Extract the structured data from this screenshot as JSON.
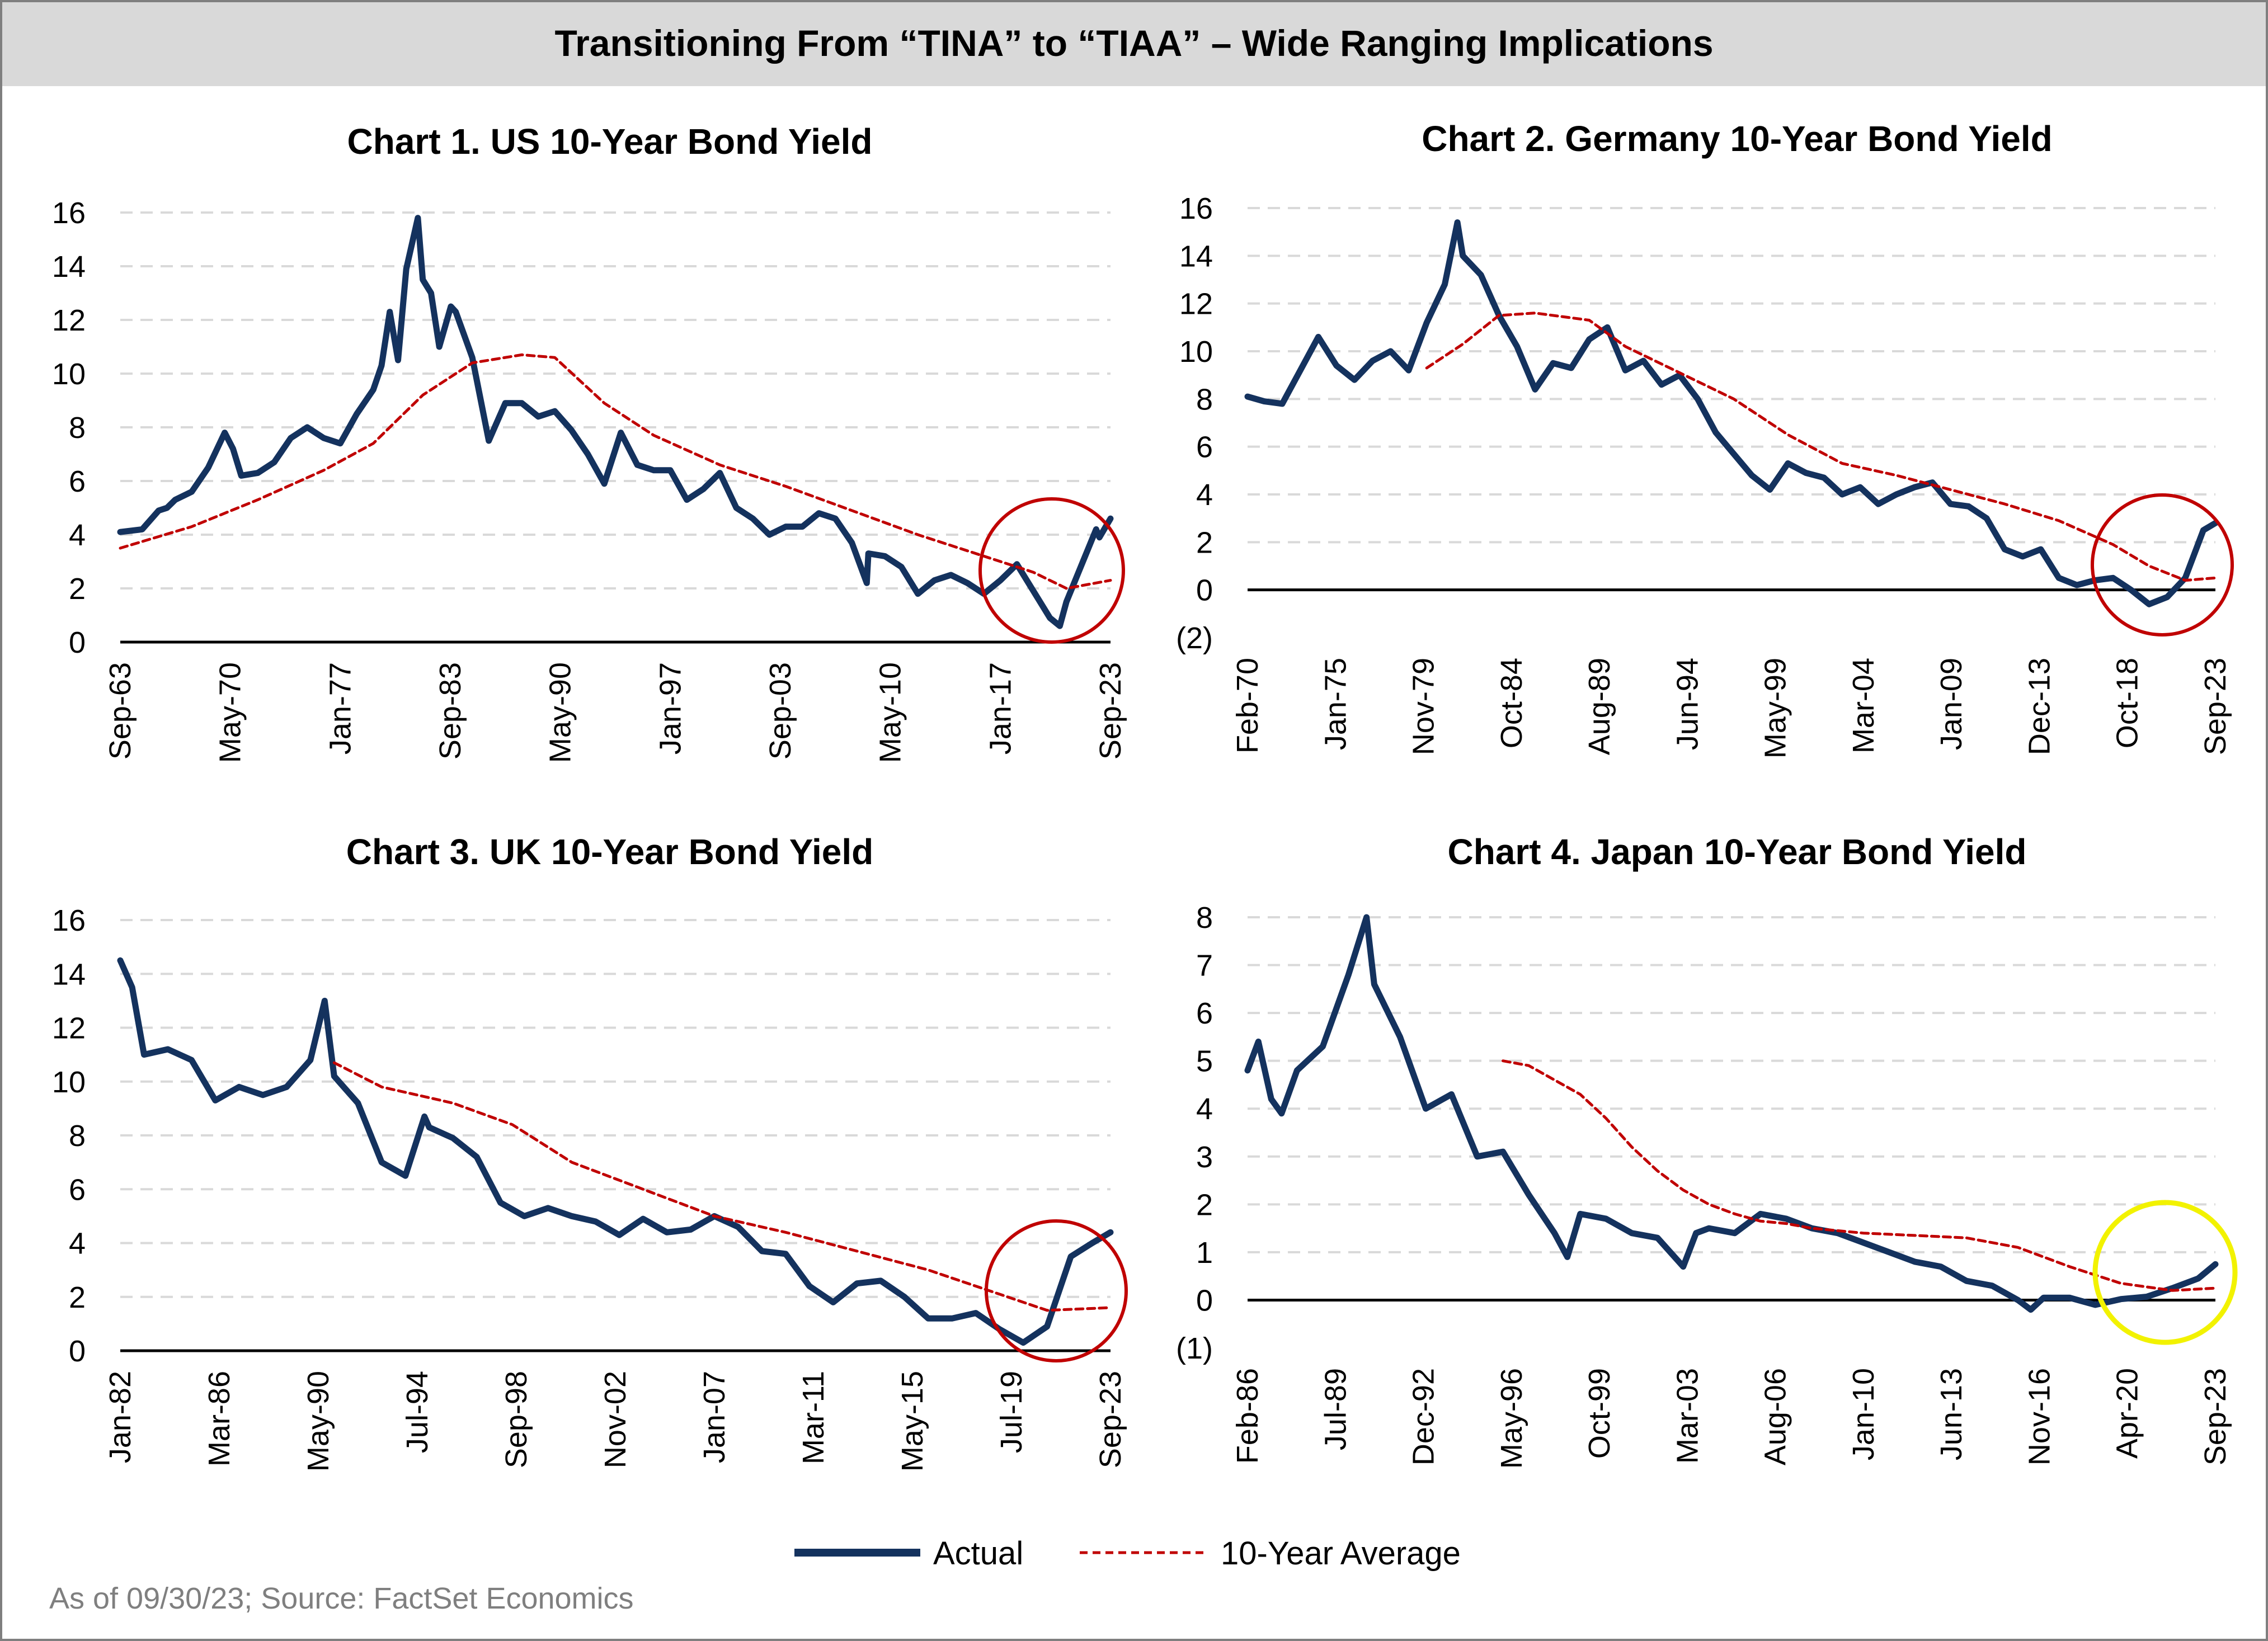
{
  "header": {
    "title": "Transitioning From “TINA” to “TIAA” – Wide Ranging Implications"
  },
  "legend": {
    "actual_label": "Actual",
    "average_label": "10-Year Average"
  },
  "footer": {
    "source": "As of 09/30/23; Source: FactSet Economics"
  },
  "colors": {
    "actual": "#14325e",
    "average": "#c00000",
    "circle_red": "#c00000",
    "circle_yellow": "#f2f200",
    "grid": "#d9d9d9",
    "header_bg": "#d9d9d9"
  },
  "chart_data": [
    {
      "type": "line",
      "title": "Chart 1. US 10-Year Bond Yield",
      "xlabel": "",
      "ylabel": "",
      "x_ticks": [
        "Sep-63",
        "May-70",
        "Jan-77",
        "Sep-83",
        "May-90",
        "Jan-97",
        "Sep-03",
        "May-10",
        "Jan-17",
        "Sep-23"
      ],
      "x_range": [
        1963.67,
        2023.67
      ],
      "ylim": [
        0,
        16
      ],
      "y_ticks": [
        0,
        2,
        4,
        6,
        8,
        10,
        12,
        14,
        16
      ],
      "y_tick_labels": [
        "0",
        "2",
        "4",
        "6",
        "8",
        "10",
        "12",
        "14",
        "16"
      ],
      "grid": true,
      "highlight_circle": "red",
      "series": [
        {
          "name": "Actual",
          "style": "solid",
          "x": [
            1963.67,
            1965,
            1966,
            1966.5,
            1967,
            1968,
            1969,
            1970,
            1970.5,
            1971,
            1972,
            1973,
            1974,
            1975,
            1976,
            1977,
            1978,
            1979,
            1979.5,
            1980,
            1980.5,
            1981,
            1981.7,
            1982,
            1982.5,
            1983,
            1983.7,
            1984,
            1985,
            1986,
            1987,
            1988,
            1989,
            1990,
            1991,
            1992,
            1993,
            1994,
            1995,
            1996,
            1997,
            1998,
            1999,
            2000,
            2001,
            2002,
            2003,
            2004,
            2005,
            2006,
            2007,
            2008,
            2008.9,
            2009,
            2010,
            2011,
            2012,
            2013,
            2014,
            2015,
            2016,
            2017,
            2018,
            2019,
            2020,
            2020.6,
            2021,
            2022,
            2022.8,
            2023,
            2023.67
          ],
          "y": [
            4.1,
            4.2,
            4.9,
            5.0,
            5.3,
            5.6,
            6.5,
            7.8,
            7.2,
            6.2,
            6.3,
            6.7,
            7.6,
            8.0,
            7.6,
            7.4,
            8.5,
            9.4,
            10.3,
            12.3,
            10.5,
            13.9,
            15.8,
            13.5,
            13.0,
            11.0,
            12.5,
            12.3,
            10.6,
            7.5,
            8.9,
            8.9,
            8.4,
            8.6,
            7.9,
            7.0,
            5.9,
            7.8,
            6.6,
            6.4,
            6.4,
            5.3,
            5.7,
            6.3,
            5.0,
            4.6,
            4.0,
            4.3,
            4.3,
            4.8,
            4.6,
            3.7,
            2.2,
            3.3,
            3.2,
            2.8,
            1.8,
            2.3,
            2.5,
            2.2,
            1.8,
            2.3,
            2.9,
            1.9,
            0.9,
            0.6,
            1.5,
            3.0,
            4.2,
            3.9,
            4.6
          ]
        },
        {
          "name": "10-Year Average",
          "style": "dashed",
          "x": [
            1963.67,
            1968,
            1972,
            1976,
            1979,
            1982,
            1985,
            1988,
            1990,
            1993,
            1996,
            2000,
            2004,
            2008,
            2012,
            2016,
            2019,
            2021,
            2023.67
          ],
          "y": [
            3.5,
            4.3,
            5.3,
            6.4,
            7.4,
            9.2,
            10.4,
            10.7,
            10.6,
            8.9,
            7.7,
            6.6,
            5.8,
            4.9,
            4.0,
            3.2,
            2.6,
            2.0,
            2.3
          ]
        }
      ]
    },
    {
      "type": "line",
      "title": "Chart 2. Germany 10-Year Bond Yield",
      "xlabel": "",
      "ylabel": "",
      "x_ticks": [
        "Feb-70",
        "Jan-75",
        "Nov-79",
        "Oct-84",
        "Aug-89",
        "Jun-94",
        "May-99",
        "Mar-04",
        "Jan-09",
        "Dec-13",
        "Oct-18",
        "Sep-23"
      ],
      "x_range": [
        1970.08,
        2023.67
      ],
      "ylim": [
        -2,
        16
      ],
      "y_ticks": [
        -2,
        0,
        2,
        4,
        6,
        8,
        10,
        12,
        14,
        16
      ],
      "y_tick_labels": [
        "(2)",
        "0",
        "2",
        "4",
        "6",
        "8",
        "10",
        "12",
        "14",
        "16"
      ],
      "grid": true,
      "zero_line": true,
      "highlight_circle": "red",
      "series": [
        {
          "name": "Actual",
          "style": "solid",
          "x": [
            1970.08,
            1971,
            1972,
            1973,
            1974,
            1975,
            1976,
            1977,
            1978,
            1979,
            1980,
            1981,
            1981.7,
            1982,
            1983,
            1984,
            1985,
            1986,
            1987,
            1988,
            1989,
            1990,
            1991,
            1992,
            1993,
            1994,
            1995,
            1996,
            1997,
            1998,
            1999,
            2000,
            2001,
            2002,
            2003,
            2004,
            2005,
            2006,
            2007,
            2008,
            2009,
            2010,
            2011,
            2012,
            2013,
            2014,
            2015,
            2016,
            2017,
            2018,
            2019,
            2020,
            2021,
            2022,
            2023,
            2023.67
          ],
          "y": [
            8.1,
            7.9,
            7.8,
            9.2,
            10.6,
            9.4,
            8.8,
            9.6,
            10.0,
            9.2,
            11.2,
            12.8,
            15.4,
            14.0,
            13.2,
            11.5,
            10.2,
            8.4,
            9.5,
            9.3,
            10.5,
            11.0,
            9.2,
            9.6,
            8.6,
            9.0,
            8.0,
            6.6,
            5.7,
            4.8,
            4.2,
            5.3,
            4.9,
            4.7,
            4.0,
            4.3,
            3.6,
            4.0,
            4.3,
            4.5,
            3.6,
            3.5,
            3.0,
            1.7,
            1.4,
            1.7,
            0.5,
            0.2,
            0.4,
            0.5,
            0.0,
            -0.6,
            -0.3,
            0.5,
            2.5,
            2.8
          ]
        },
        {
          "name": "10-Year Average",
          "style": "dashed",
          "x": [
            1980,
            1982,
            1984,
            1986,
            1989,
            1991,
            1994,
            1997,
            2000,
            2003,
            2006,
            2009,
            2012,
            2015,
            2018,
            2020,
            2022,
            2023.67
          ],
          "y": [
            9.3,
            10.3,
            11.5,
            11.6,
            11.3,
            10.2,
            9.1,
            8.0,
            6.5,
            5.3,
            4.8,
            4.2,
            3.6,
            2.9,
            1.9,
            1.0,
            0.4,
            0.5
          ]
        }
      ]
    },
    {
      "type": "line",
      "title": "Chart 3. UK 10-Year Bond Yield",
      "xlabel": "",
      "ylabel": "",
      "x_ticks": [
        "Jan-82",
        "Mar-86",
        "May-90",
        "Jul-94",
        "Sep-98",
        "Nov-02",
        "Jan-07",
        "Mar-11",
        "May-15",
        "Jul-19",
        "Sep-23"
      ],
      "x_range": [
        1982.0,
        2023.67
      ],
      "ylim": [
        0,
        16
      ],
      "y_ticks": [
        0,
        2,
        4,
        6,
        8,
        10,
        12,
        14,
        16
      ],
      "y_tick_labels": [
        "0",
        "2",
        "4",
        "6",
        "8",
        "10",
        "12",
        "14",
        "16"
      ],
      "grid": true,
      "highlight_circle": "red",
      "series": [
        {
          "name": "Actual",
          "style": "solid",
          "x": [
            1982.0,
            1982.5,
            1983,
            1984,
            1985,
            1986,
            1987,
            1988,
            1989,
            1990,
            1990.6,
            1991,
            1992,
            1993,
            1994,
            1994.8,
            1995,
            1996,
            1997,
            1998,
            1999,
            2000,
            2001,
            2002,
            2003,
            2004,
            2005,
            2006,
            2007,
            2008,
            2009,
            2010,
            2011,
            2012,
            2013,
            2014,
            2015,
            2016,
            2017,
            2018,
            2019,
            2020,
            2021,
            2022,
            2022.9,
            2023.67
          ],
          "y": [
            14.5,
            13.5,
            11.0,
            11.2,
            10.8,
            9.3,
            9.8,
            9.5,
            9.8,
            10.8,
            13.0,
            10.2,
            9.2,
            7.0,
            6.5,
            8.7,
            8.3,
            7.9,
            7.2,
            5.5,
            5.0,
            5.3,
            5.0,
            4.8,
            4.3,
            4.9,
            4.4,
            4.5,
            5.0,
            4.6,
            3.7,
            3.6,
            2.4,
            1.8,
            2.5,
            2.6,
            2.0,
            1.2,
            1.2,
            1.4,
            0.8,
            0.3,
            0.9,
            3.5,
            4.0,
            4.4
          ]
        },
        {
          "name": "10-Year Average",
          "style": "dashed",
          "x": [
            1991.0,
            1993,
            1996,
            1998.5,
            2001,
            2004,
            2007,
            2010,
            2013,
            2016,
            2019,
            2021,
            2023.67
          ],
          "y": [
            10.7,
            9.8,
            9.2,
            8.4,
            7.0,
            6.0,
            5.0,
            4.4,
            3.7,
            3.0,
            2.1,
            1.5,
            1.6
          ]
        }
      ]
    },
    {
      "type": "line",
      "title": "Chart 4. Japan 10-Year Bond Yield",
      "xlabel": "",
      "ylabel": "",
      "x_ticks": [
        "Feb-86",
        "Jul-89",
        "Dec-92",
        "May-96",
        "Oct-99",
        "Mar-03",
        "Aug-06",
        "Jan-10",
        "Jun-13",
        "Nov-16",
        "Apr-20",
        "Sep-23"
      ],
      "x_range": [
        1986.08,
        2023.67
      ],
      "ylim": [
        -1,
        8
      ],
      "y_ticks": [
        -1,
        0,
        1,
        2,
        3,
        4,
        5,
        6,
        7,
        8
      ],
      "y_tick_labels": [
        "(1)",
        "0",
        "1",
        "2",
        "3",
        "4",
        "5",
        "6",
        "7",
        "8"
      ],
      "grid": true,
      "zero_line": true,
      "highlight_circle": "yellow",
      "series": [
        {
          "name": "Actual",
          "style": "solid",
          "x": [
            1986.08,
            1986.5,
            1987,
            1987.4,
            1988,
            1989,
            1990,
            1990.7,
            1991,
            1992,
            1993,
            1994,
            1995,
            1996,
            1997,
            1998,
            1998.5,
            1999,
            2000,
            2001,
            2002,
            2003,
            2003.5,
            2004,
            2005,
            2006,
            2007,
            2008,
            2009,
            2010,
            2011,
            2012,
            2013,
            2014,
            2015,
            2016,
            2016.5,
            2017,
            2018,
            2019,
            2020,
            2021,
            2022,
            2023,
            2023.67
          ],
          "y": [
            4.8,
            5.4,
            4.2,
            3.9,
            4.8,
            5.3,
            6.8,
            8.0,
            6.6,
            5.5,
            4.0,
            4.3,
            3.0,
            3.1,
            2.2,
            1.4,
            0.9,
            1.8,
            1.7,
            1.4,
            1.3,
            0.7,
            1.4,
            1.5,
            1.4,
            1.8,
            1.7,
            1.5,
            1.4,
            1.2,
            1.0,
            0.8,
            0.7,
            0.4,
            0.3,
            0.0,
            -0.2,
            0.05,
            0.05,
            -0.1,
            0.02,
            0.07,
            0.25,
            0.45,
            0.75
          ]
        },
        {
          "name": "10-Year Average",
          "style": "dashed",
          "x": [
            1996.0,
            1997,
            1998,
            1999,
            2000,
            2001,
            2002,
            2003,
            2004,
            2005,
            2006,
            2007,
            2008,
            2010,
            2012,
            2014,
            2016,
            2018,
            2020,
            2022,
            2023.67
          ],
          "y": [
            5.0,
            4.9,
            4.6,
            4.3,
            3.8,
            3.2,
            2.7,
            2.3,
            2.0,
            1.8,
            1.65,
            1.6,
            1.5,
            1.4,
            1.35,
            1.3,
            1.1,
            0.7,
            0.35,
            0.2,
            0.25
          ]
        }
      ]
    }
  ]
}
